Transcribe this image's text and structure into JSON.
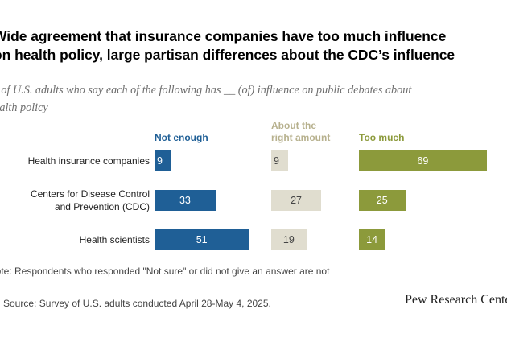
{
  "title_lines": [
    "Wide agreement that insurance companies have too much influence",
    "on health policy, large partisan differences about the CDC’s influence"
  ],
  "subtitle_lines": [
    "% of U.S. adults who say each of the following has __ (of) influence on public debates about",
    "health policy"
  ],
  "note": "Note: Respondents who responded \"Not sure\" or did not give an answer are not",
  "source": "Source: Survey of U.S. adults conducted April 28-May 4, 2025.",
  "logo": "Pew Research Center",
  "colors": {
    "not_enough": "#1f5f96",
    "right_amount": "#e0ddcf",
    "too_much": "#8c9a3b",
    "right_amount_label": "#b7b18e"
  },
  "chart_data": {
    "type": "bar",
    "title": "Wide agreement that insurance companies have too much influence on health policy, large partisan differences about the CDC’s influence",
    "categories": [
      "Health insurance companies",
      "Centers for Disease Control and Prevention (CDC)",
      "Health scientists"
    ],
    "category_lines": [
      [
        "Health insurance companies"
      ],
      [
        "Centers for Disease Control",
        "and Prevention (CDC)"
      ],
      [
        "Health scientists"
      ]
    ],
    "series": [
      {
        "name": "Not enough",
        "name_lines": [
          "Not enough"
        ],
        "values": [
          9,
          33,
          51
        ]
      },
      {
        "name": "About the right amount",
        "name_lines": [
          "About the",
          "right amount"
        ],
        "values": [
          9,
          27,
          19
        ]
      },
      {
        "name": "Too much",
        "name_lines": [
          "Too much"
        ],
        "values": [
          69,
          25,
          14
        ]
      }
    ],
    "xlabel": "",
    "ylabel": "",
    "ylim": [
      0,
      100
    ],
    "grid": false,
    "legend": "column headers above bars"
  }
}
